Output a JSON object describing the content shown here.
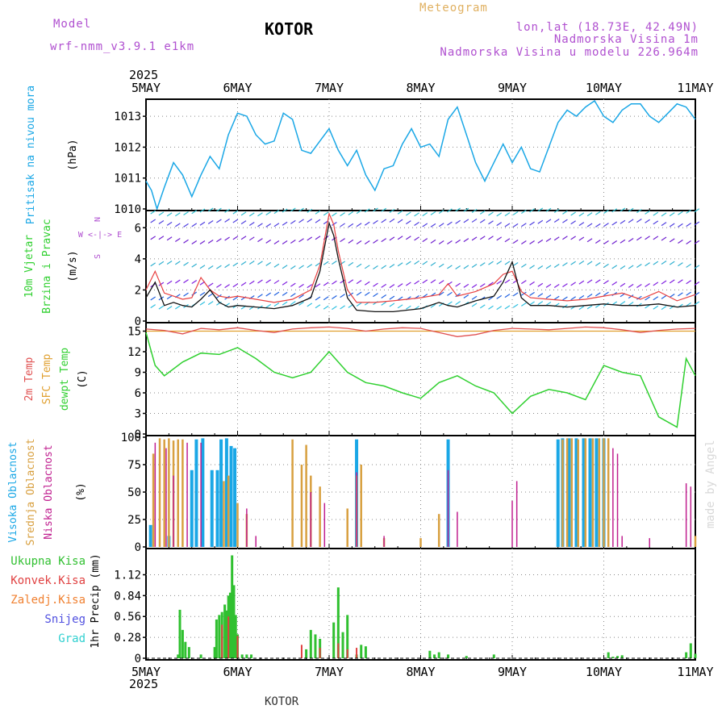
{
  "header": {
    "model_label": "Model",
    "model_name": "wrf-nmm_v3.9.1 e1km",
    "station": "KOTOR",
    "meteogram_label": "Meteogram",
    "lonlat": "lon,lat (18.73E, 42.49N)",
    "elevation": "Nadmorska Visina 1m",
    "model_elevation": "Nadmorska Visina u modelu 226.964m"
  },
  "footer": {
    "station": "KOTOR",
    "watermark": "made by Angel"
  },
  "time_axis": {
    "year": "2025",
    "labels": [
      "5MAY",
      "6MAY",
      "7MAY",
      "8MAY",
      "9MAY",
      "10MAY",
      "11MAY"
    ]
  },
  "colors": {
    "pressure": "#1aa7e6",
    "wind_speed": "#111111",
    "wind_gust": "#e84040",
    "temp2m": "#e05050",
    "sfc_temp": "#e0a030",
    "dewpt": "#30d030",
    "high_cloud": "#1aa7e6",
    "mid_cloud": "#d8a040",
    "low_cloud": "#c02090",
    "total_precip": "#30c030",
    "conv_precip": "#e04040",
    "frozen_precip": "#f08030",
    "snow": "#5050e0",
    "hail": "#30d0d0",
    "purple_text": "#b050d0"
  },
  "chart_data": [
    {
      "type": "line",
      "panel": "pressure",
      "ylabel_lines": [
        "Pritisak na nivou mora",
        "(hPa)"
      ],
      "ylim": [
        1010,
        1013.5
      ],
      "yticks": [
        "1013",
        "1012",
        "1011",
        "1010"
      ],
      "grid": true,
      "series": [
        {
          "name": "Pritisak na nivou mora",
          "x": [
            0,
            0.06,
            0.12,
            0.2,
            0.3,
            0.4,
            0.5,
            0.6,
            0.7,
            0.8,
            0.9,
            1.0,
            1.1,
            1.2,
            1.3,
            1.4,
            1.5,
            1.6,
            1.7,
            1.8,
            1.9,
            2.0,
            2.1,
            2.2,
            2.3,
            2.4,
            2.5,
            2.6,
            2.7,
            2.8,
            2.9,
            3.0,
            3.1,
            3.2,
            3.3,
            3.4,
            3.5,
            3.6,
            3.7,
            3.8,
            3.9,
            4.0,
            4.1,
            4.2,
            4.3,
            4.4,
            4.5,
            4.6,
            4.7,
            4.8,
            4.9,
            5.0,
            5.1,
            5.2,
            5.3,
            5.4,
            5.5,
            5.6,
            5.7,
            5.8,
            5.9,
            6.0
          ],
          "values": [
            1010.9,
            1010.6,
            1010.0,
            1010.7,
            1011.5,
            1011.1,
            1010.4,
            1011.1,
            1011.7,
            1011.3,
            1012.4,
            1013.1,
            1013.0,
            1012.4,
            1012.1,
            1012.2,
            1013.1,
            1012.9,
            1011.9,
            1011.8,
            1012.2,
            1012.6,
            1011.9,
            1011.4,
            1011.9,
            1011.1,
            1010.6,
            1011.3,
            1011.4,
            1012.1,
            1012.6,
            1012.0,
            1012.1,
            1011.7,
            1012.9,
            1013.3,
            1012.4,
            1011.5,
            1010.9,
            1011.5,
            1012.1,
            1011.5,
            1012.0,
            1011.3,
            1011.2,
            1012.0,
            1012.8,
            1013.2,
            1013.0,
            1013.3,
            1013.5,
            1013.0,
            1012.8,
            1013.2,
            1013.4,
            1013.4,
            1013.0,
            1012.8,
            1013.1,
            1013.4,
            1013.3,
            1012.9
          ]
        }
      ]
    },
    {
      "type": "line",
      "panel": "wind",
      "ylabel_lines": [
        "10m Vjetar",
        "Brzina i Pravac",
        "(m/s)"
      ],
      "compass_label": "W <-|-> E",
      "compass_ns": [
        "N",
        "S"
      ],
      "ylim": [
        0,
        7
      ],
      "yticks": [
        "6",
        "4",
        "2",
        "0"
      ],
      "grid": true,
      "series": [
        {
          "name": "speed",
          "x": [
            0,
            0.1,
            0.2,
            0.3,
            0.4,
            0.5,
            0.6,
            0.7,
            0.8,
            0.9,
            1.0,
            1.2,
            1.4,
            1.6,
            1.8,
            1.9,
            2.0,
            2.05,
            2.1,
            2.2,
            2.3,
            2.5,
            2.7,
            3.0,
            3.2,
            3.3,
            3.4,
            3.6,
            3.8,
            3.9,
            4.0,
            4.1,
            4.2,
            4.4,
            4.6,
            4.8,
            5.0,
            5.2,
            5.4,
            5.6,
            5.8,
            6.0
          ],
          "values": [
            1.5,
            2.5,
            1.0,
            1.2,
            1.0,
            0.9,
            1.4,
            2.0,
            1.2,
            0.9,
            1.0,
            0.9,
            0.8,
            1.0,
            1.5,
            3.2,
            6.3,
            5.5,
            4.0,
            1.5,
            0.7,
            0.6,
            0.6,
            0.8,
            1.2,
            1.0,
            0.9,
            1.3,
            1.6,
            2.5,
            3.8,
            1.5,
            1.0,
            1.0,
            0.9,
            1.0,
            1.1,
            1.0,
            1.0,
            1.1,
            0.9,
            1.0
          ]
        },
        {
          "name": "gust",
          "x": [
            0,
            0.1,
            0.2,
            0.3,
            0.4,
            0.5,
            0.6,
            0.7,
            0.8,
            0.9,
            1.0,
            1.2,
            1.4,
            1.6,
            1.8,
            1.9,
            2.0,
            2.05,
            2.1,
            2.2,
            2.3,
            2.5,
            2.7,
            3.0,
            3.2,
            3.3,
            3.4,
            3.6,
            3.8,
            3.9,
            4.0,
            4.1,
            4.2,
            4.4,
            4.6,
            4.8,
            5.0,
            5.2,
            5.4,
            5.6,
            5.8,
            6.0
          ],
          "values": [
            2.0,
            3.2,
            1.8,
            1.6,
            1.4,
            1.5,
            2.8,
            2.0,
            1.6,
            1.5,
            1.6,
            1.4,
            1.2,
            1.4,
            2.0,
            3.6,
            6.9,
            6.2,
            4.5,
            2.0,
            1.2,
            1.2,
            1.3,
            1.5,
            1.7,
            2.4,
            1.6,
            1.9,
            2.4,
            3.0,
            3.2,
            1.9,
            1.5,
            1.4,
            1.3,
            1.4,
            1.6,
            1.8,
            1.4,
            1.9,
            1.3,
            1.7
          ]
        }
      ]
    },
    {
      "type": "line",
      "panel": "temperature",
      "ylabel_lines": [
        "2m Temp",
        "SFC Temp",
        "dewpt Temp",
        "(C)"
      ],
      "ylim": [
        0,
        16
      ],
      "yticks": [
        "15",
        "12",
        "9",
        "6",
        "3",
        "0"
      ],
      "grid": true,
      "series": [
        {
          "name": "2m Temp",
          "x": [
            0,
            0.2,
            0.4,
            0.6,
            0.8,
            1.0,
            1.2,
            1.4,
            1.6,
            1.8,
            2.0,
            2.2,
            2.4,
            2.6,
            2.8,
            3.0,
            3.2,
            3.4,
            3.6,
            3.8,
            4.0,
            4.2,
            4.4,
            4.6,
            4.8,
            5.0,
            5.2,
            5.4,
            5.6,
            5.8,
            6.0
          ],
          "values": [
            15.3,
            15.1,
            14.6,
            15.4,
            15.2,
            15.5,
            15.1,
            14.8,
            15.3,
            15.5,
            15.6,
            15.4,
            15.0,
            15.3,
            15.5,
            15.4,
            14.8,
            14.2,
            14.5,
            15.1,
            15.4,
            15.3,
            15.2,
            15.4,
            15.6,
            15.5,
            15.2,
            14.8,
            15.1,
            15.3,
            15.4
          ]
        },
        {
          "name": "SFC Temp",
          "x": [
            0,
            6
          ],
          "values": [
            15.0,
            15.0
          ]
        },
        {
          "name": "dewpt Temp",
          "x": [
            0,
            0.1,
            0.2,
            0.4,
            0.6,
            0.8,
            1.0,
            1.2,
            1.4,
            1.6,
            1.8,
            2.0,
            2.2,
            2.4,
            2.6,
            2.8,
            3.0,
            3.2,
            3.4,
            3.6,
            3.8,
            4.0,
            4.2,
            4.4,
            4.6,
            4.8,
            5.0,
            5.2,
            5.4,
            5.6,
            5.8,
            5.9,
            6.0
          ],
          "values": [
            14.8,
            10.0,
            8.5,
            10.5,
            11.8,
            11.6,
            12.6,
            11.0,
            9.0,
            8.2,
            9.0,
            12.0,
            9.0,
            7.5,
            7.0,
            6.0,
            5.2,
            7.5,
            8.5,
            7.0,
            6.0,
            3.0,
            5.5,
            6.5,
            6.0,
            5.0,
            10.0,
            9.0,
            8.5,
            2.5,
            1.0,
            11.0,
            8.5
          ]
        }
      ]
    },
    {
      "type": "bar",
      "panel": "cloud",
      "ylabel_lines": [
        "Visoka Oblacnost",
        "Srednja Oblacnost",
        "Niska Oblacnost",
        "(%)"
      ],
      "ylim": [
        0,
        100
      ],
      "yticks": [
        "100",
        "75",
        "50",
        "25",
        "0"
      ],
      "grid": true,
      "series": [
        {
          "name": "Visoka Oblacnost",
          "x": [
            0.05,
            0.25,
            0.5,
            0.55,
            0.62,
            0.72,
            0.78,
            0.82,
            0.88,
            0.93,
            0.97,
            2.3,
            3.3,
            4.5,
            4.55,
            4.62,
            4.7,
            4.78,
            4.85,
            4.92,
            5.0
          ],
          "values": [
            20,
            10,
            70,
            98,
            99,
            70,
            70,
            98,
            99,
            92,
            90,
            98,
            98,
            98,
            99,
            99,
            99,
            99,
            99,
            99,
            99
          ]
        },
        {
          "name": "Srednja Oblacnost",
          "x": [
            0.08,
            0.15,
            0.2,
            0.25,
            0.3,
            0.35,
            0.4,
            0.85,
            0.9,
            1.0,
            1.1,
            1.6,
            1.7,
            1.75,
            1.8,
            1.9,
            2.2,
            2.3,
            2.35,
            2.6,
            3.0,
            3.2,
            4.55,
            4.6,
            4.65,
            4.72,
            4.8,
            4.88,
            4.95,
            5.0,
            5.05,
            6.0
          ],
          "values": [
            85,
            99,
            98,
            99,
            97,
            98,
            98,
            60,
            65,
            40,
            30,
            98,
            75,
            93,
            65,
            55,
            35,
            65,
            75,
            8,
            8,
            30,
            98,
            99,
            99,
            98,
            99,
            99,
            99,
            99,
            99,
            10
          ]
        },
        {
          "name": "Niska Oblacnost",
          "x": [
            0.1,
            0.22,
            0.3,
            0.45,
            0.6,
            1.1,
            1.2,
            1.8,
            1.95,
            2.3,
            2.6,
            3.3,
            3.4,
            4.0,
            4.05,
            5.1,
            5.15,
            5.2,
            5.5,
            5.9,
            5.95
          ],
          "values": [
            95,
            90,
            65,
            95,
            95,
            35,
            10,
            50,
            40,
            68,
            10,
            70,
            32,
            42,
            60,
            90,
            85,
            10,
            8,
            58,
            55
          ]
        }
      ]
    },
    {
      "type": "bar",
      "panel": "precip",
      "ylabel_lines": [
        "1hr Precip (mm)"
      ],
      "legend": [
        "Ukupna Kisa",
        "Konvek.Kisa",
        "Zaledj.Kisa",
        "Snijeg",
        "Grad"
      ],
      "ylim": [
        0,
        1.45
      ],
      "yticks": [
        "1.12",
        "0.84",
        "0.56",
        "0.28",
        "0"
      ],
      "grid": true,
      "series": [
        {
          "name": "Ukupna Kisa",
          "x": [
            0.35,
            0.37,
            0.4,
            0.43,
            0.47,
            0.6,
            0.75,
            0.77,
            0.8,
            0.83,
            0.86,
            0.88,
            0.9,
            0.92,
            0.94,
            0.96,
            0.98,
            1.0,
            1.05,
            1.1,
            1.15,
            1.75,
            1.8,
            1.85,
            1.9,
            2.05,
            2.1,
            2.15,
            2.2,
            2.3,
            2.35,
            2.4,
            3.1,
            3.15,
            3.2,
            3.3,
            3.5,
            3.8,
            5.05,
            5.1,
            5.15,
            5.2,
            5.9,
            5.95,
            6.0
          ],
          "values": [
            0.05,
            0.65,
            0.38,
            0.22,
            0.15,
            0.05,
            0.15,
            0.52,
            0.58,
            0.62,
            0.72,
            0.64,
            0.84,
            0.88,
            1.38,
            0.98,
            0.58,
            0.32,
            0.05,
            0.05,
            0.05,
            0.12,
            0.38,
            0.32,
            0.26,
            0.48,
            0.95,
            0.35,
            0.58,
            0.05,
            0.18,
            0.16,
            0.1,
            0.05,
            0.08,
            0.05,
            0.03,
            0.05,
            0.08,
            0.02,
            0.03,
            0.04,
            0.08,
            0.2,
            0.06
          ]
        },
        {
          "name": "Konvek.Kisa",
          "x": [
            0.83,
            0.9,
            1.0,
            1.7,
            1.9,
            2.1,
            2.2,
            2.3
          ],
          "values": [
            0.45,
            0.56,
            0.3,
            0.18,
            0.14,
            0.2,
            0.12,
            0.14
          ]
        }
      ]
    }
  ]
}
